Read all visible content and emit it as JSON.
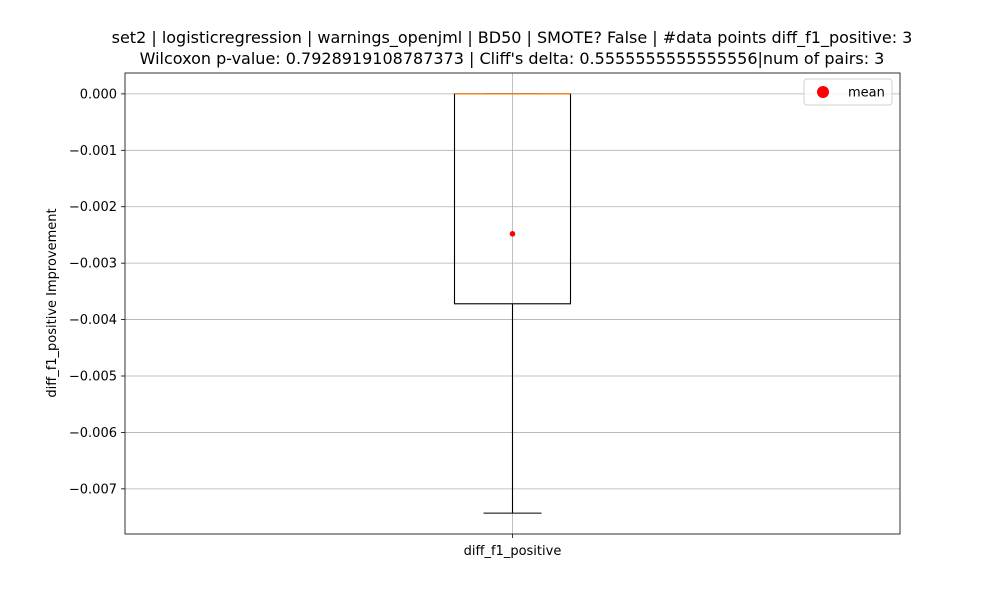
{
  "chart_data": {
    "type": "box",
    "title_line1": "set2 | logisticregression | warnings_openjml | BD50 | SMOTE? False | #data points diff_f1_positive: 3",
    "title_line2": "Wilcoxon p-value: 0.7928919108787373 | Cliff's delta: 0.5555555555555556|num of pairs: 3",
    "ylabel": "diff_f1_positive Improvement",
    "xlabel": "",
    "categories": [
      "diff_f1_positive"
    ],
    "ylim": [
      -0.0078,
      0.00037
    ],
    "yticks": [
      0.0,
      -0.001,
      -0.002,
      -0.003,
      -0.004,
      -0.005,
      -0.006,
      -0.007
    ],
    "ytick_labels": [
      "0.000",
      "−0.001",
      "−0.002",
      "−0.003",
      "−0.004",
      "−0.005",
      "−0.006",
      "−0.007"
    ],
    "grid": true,
    "legend_position": "top-right",
    "legend": [
      "mean"
    ],
    "box": {
      "whisker_low": -0.00743,
      "q1": -0.00372,
      "median": 0.0,
      "q3": 0.0,
      "whisker_high": 0.0,
      "mean": -0.00248
    },
    "colors": {
      "box": "#000000",
      "median": "#ff7f0e",
      "mean": "#ff0000",
      "grid": "#b0b0b0"
    }
  }
}
